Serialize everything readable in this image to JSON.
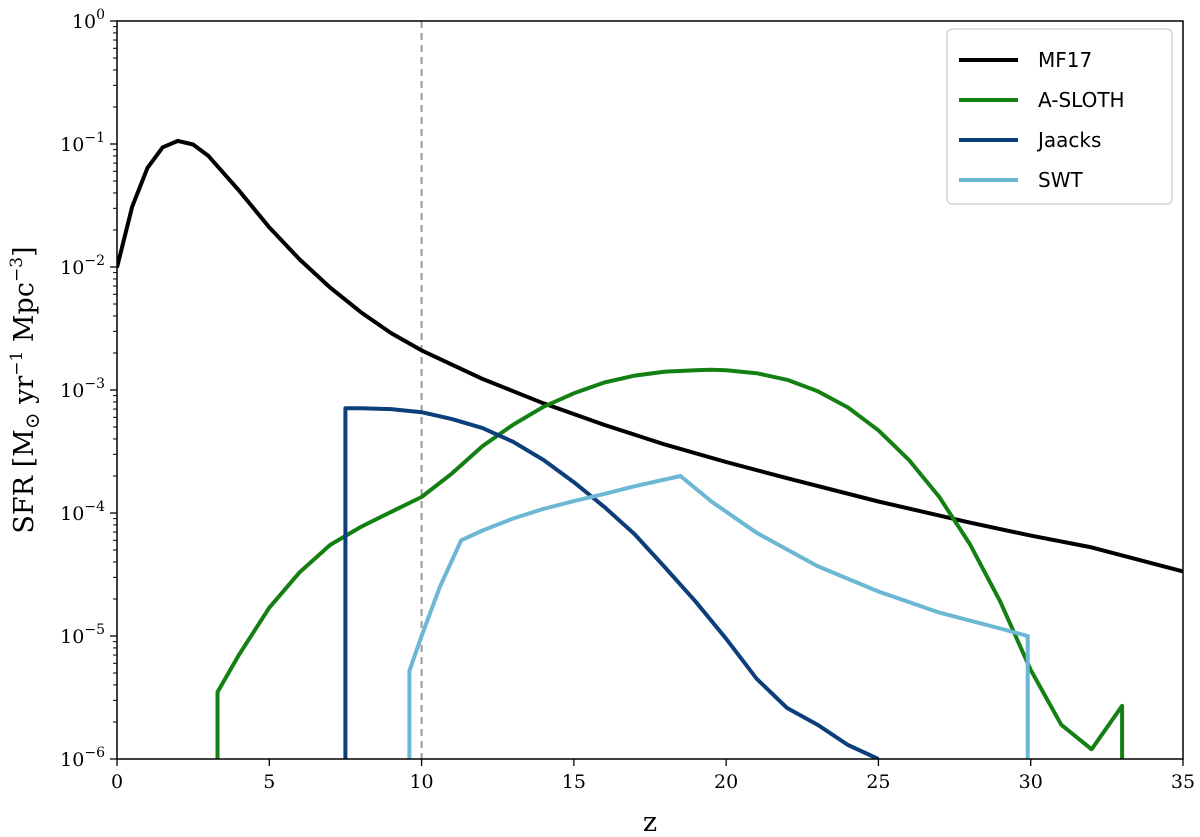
{
  "chart_data": {
    "type": "line",
    "title": "",
    "xlabel": "z",
    "ylabel": "SFR [M⊙ yr⁻¹ Mpc⁻³]",
    "xlim": [
      0,
      35
    ],
    "ylim": [
      1e-06,
      1
    ],
    "yscale": "log",
    "grid": false,
    "legend_position": "top-right",
    "x_ticks": [
      0,
      5,
      10,
      15,
      20,
      25,
      30,
      35
    ],
    "x_tick_labels": [
      "0",
      "5",
      "10",
      "15",
      "20",
      "25",
      "30",
      "35"
    ],
    "y_ticks": [
      1e-06,
      1e-05,
      0.0001,
      0.001,
      0.01,
      0.1,
      1
    ],
    "y_tick_labels": [
      {
        "base": "10",
        "exp": "−6"
      },
      {
        "base": "10",
        "exp": "−5"
      },
      {
        "base": "10",
        "exp": "−4"
      },
      {
        "base": "10",
        "exp": "−3"
      },
      {
        "base": "10",
        "exp": "−2"
      },
      {
        "base": "10",
        "exp": "−1"
      },
      {
        "base": "10",
        "exp": "0"
      }
    ],
    "vline": {
      "x": 10,
      "style": "dashed",
      "color": "#999999"
    },
    "series": [
      {
        "name": "MF17",
        "color": "#000000",
        "x": [
          0,
          0.5,
          1,
          1.5,
          2,
          2.5,
          3,
          4,
          5,
          6,
          7,
          8,
          9,
          10,
          12,
          14,
          16,
          18,
          20,
          22,
          25,
          28,
          30,
          32,
          35
        ],
        "y": [
          0.0099,
          0.031,
          0.064,
          0.094,
          0.106,
          0.099,
          0.08,
          0.042,
          0.021,
          0.0115,
          0.0068,
          0.0043,
          0.0029,
          0.0021,
          0.00123,
          0.00078,
          0.00052,
          0.00036,
          0.00026,
          0.000192,
          0.000124,
          8.35e-05,
          6.55e-05,
          5.25e-05,
          3.35e-05
        ]
      },
      {
        "name": "A-SLOTH",
        "color": "#148014",
        "x": [
          3.3,
          3.3,
          4,
          5,
          6,
          7,
          8,
          9,
          10,
          11,
          12,
          13,
          14,
          15,
          16,
          17,
          18,
          19,
          19.5,
          20,
          21,
          22,
          23,
          24,
          25,
          26,
          27,
          28,
          29,
          30,
          31,
          32,
          33,
          33
        ],
        "y": [
          1e-06,
          3.5e-06,
          7e-06,
          1.7e-05,
          3.3e-05,
          5.5e-05,
          7.7e-05,
          0.000102,
          0.000135,
          0.00021,
          0.00035,
          0.00052,
          0.00073,
          0.00094,
          0.00115,
          0.00131,
          0.00141,
          0.00145,
          0.00146,
          0.00145,
          0.00137,
          0.00121,
          0.00098,
          0.00072,
          0.00047,
          0.00027,
          0.000135,
          5.6e-05,
          1.9e-05,
          5.3e-06,
          1.9e-06,
          1.2e-06,
          2.7e-06,
          1e-06
        ]
      },
      {
        "name": "Jaacks",
        "color": "#0c3f7a",
        "x": [
          7.5,
          7.5,
          8,
          9,
          10,
          11,
          12,
          13,
          14,
          15,
          16,
          17,
          18,
          19,
          20,
          21,
          22,
          23,
          24,
          25
        ],
        "y": [
          1e-06,
          0.00071,
          0.00071,
          0.0007,
          0.00066,
          0.00058,
          0.00049,
          0.00038,
          0.00027,
          0.000178,
          0.000112,
          6.7e-05,
          3.6e-05,
          1.9e-05,
          9.5e-06,
          4.5e-06,
          2.6e-06,
          1.9e-06,
          1.3e-06,
          1e-06
        ]
      },
      {
        "name": "SWT",
        "color": "#6bb7d4",
        "x": [
          9.6,
          9.6,
          10,
          10.6,
          11.3,
          12,
          13,
          14,
          15,
          16,
          17,
          18.5,
          19.5,
          21,
          23,
          25,
          27,
          29,
          29.9,
          29.9
        ],
        "y": [
          1e-06,
          5.2e-06,
          1e-05,
          2.5e-05,
          6e-05,
          7.2e-05,
          9e-05,
          0.000108,
          0.000125,
          0.000143,
          0.000165,
          0.0002,
          0.000125,
          6.9e-05,
          3.7e-05,
          2.3e-05,
          1.55e-05,
          1.15e-05,
          1e-05,
          1e-06
        ]
      }
    ]
  }
}
